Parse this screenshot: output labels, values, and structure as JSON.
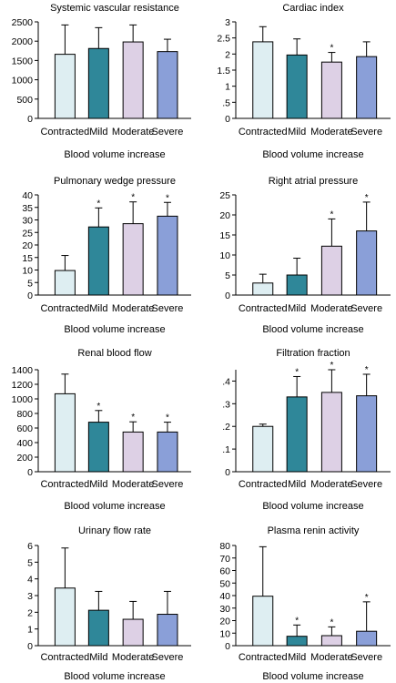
{
  "colors": {
    "contracted": "#deeef2",
    "mild": "#2f8799",
    "moderate": "#ddd0e5",
    "severe": "#8a9fd8",
    "outline": "#000000"
  },
  "chart_data": [
    {
      "type": "bar",
      "title": "Systemic vascular resistance",
      "xlabel": "Blood volume increase",
      "ylabel": "",
      "categories": [
        "Contracted",
        "Mild",
        "Moderate",
        "Severe"
      ],
      "values": [
        1660,
        1810,
        1980,
        1730
      ],
      "error_upper": [
        2420,
        2350,
        2420,
        2050
      ],
      "significant": [
        false,
        false,
        false,
        false
      ],
      "ylim": [
        0,
        2500
      ],
      "yticks": [
        0,
        500,
        1000,
        1500,
        2000,
        2500
      ],
      "yticklabels": [
        "0",
        "500",
        "1000",
        "1500",
        "2000",
        "2500"
      ]
    },
    {
      "type": "bar",
      "title": "Cardiac index",
      "xlabel": "Blood volume increase",
      "ylabel": "",
      "categories": [
        "Contracted",
        "Mild",
        "Moderate",
        "Severe"
      ],
      "values": [
        2.38,
        1.97,
        1.75,
        1.92
      ],
      "error_upper": [
        2.85,
        2.47,
        2.05,
        2.38
      ],
      "significant": [
        false,
        false,
        true,
        false
      ],
      "ylim": [
        0,
        3
      ],
      "yticks": [
        0,
        0.5,
        1,
        1.5,
        2,
        2.5,
        3
      ],
      "yticklabels": [
        "0",
        ".5",
        "1",
        "1.5",
        "2",
        "2.5",
        "3"
      ]
    },
    {
      "type": "bar",
      "title": "Pulmonary wedge pressure",
      "xlabel": "Blood volume increase",
      "ylabel": "",
      "categories": [
        "Contracted",
        "Mild",
        "Moderate",
        "Severe"
      ],
      "values": [
        9.8,
        27.2,
        28.5,
        31.5
      ],
      "error_upper": [
        15.8,
        34.8,
        37.2,
        37.0
      ],
      "significant": [
        false,
        true,
        true,
        true
      ],
      "ylim": [
        0,
        40
      ],
      "yticks": [
        0,
        5,
        10,
        15,
        20,
        25,
        30,
        35,
        40
      ],
      "yticklabels": [
        "0",
        "5",
        "10",
        "15",
        "20",
        "25",
        "30",
        "35",
        "40"
      ]
    },
    {
      "type": "bar",
      "title": "Right atrial pressure",
      "xlabel": "Blood volume increase",
      "ylabel": "",
      "categories": [
        "Contracted",
        "Mild",
        "Moderate",
        "Severe"
      ],
      "values": [
        3.0,
        5.0,
        12.2,
        16.0
      ],
      "error_upper": [
        5.2,
        9.2,
        19.0,
        23.2
      ],
      "significant": [
        false,
        false,
        true,
        true
      ],
      "ylim": [
        0,
        25
      ],
      "yticks": [
        0,
        5,
        10,
        15,
        20,
        25
      ],
      "yticklabels": [
        "0",
        "5",
        "10",
        "15",
        "20",
        "25"
      ]
    },
    {
      "type": "bar",
      "title": "Renal blood flow",
      "xlabel": "Blood volume increase",
      "ylabel": "",
      "categories": [
        "Contracted",
        "Mild",
        "Moderate",
        "Severe"
      ],
      "values": [
        1070,
        680,
        545,
        545
      ],
      "error_upper": [
        1340,
        840,
        685,
        680
      ],
      "significant": [
        false,
        true,
        true,
        true
      ],
      "ylim": [
        0,
        1400
      ],
      "yticks": [
        0,
        200,
        400,
        600,
        800,
        1000,
        1200,
        1400
      ],
      "yticklabels": [
        "0",
        "200",
        "400",
        "600",
        "800",
        "1000",
        "1200",
        "1400"
      ]
    },
    {
      "type": "bar",
      "title": "Filtration fraction",
      "xlabel": "Blood volume increase",
      "ylabel": "",
      "categories": [
        "Contracted",
        "Mild",
        "Moderate",
        "Severe"
      ],
      "values": [
        0.2,
        0.33,
        0.35,
        0.335
      ],
      "error_upper": [
        0.21,
        0.42,
        0.45,
        0.43
      ],
      "significant": [
        false,
        true,
        true,
        true
      ],
      "ylim": [
        0,
        0.45
      ],
      "yticks": [
        0,
        0.1,
        0.2,
        0.3,
        0.4
      ],
      "yticklabels": [
        "0",
        ".1",
        ".2",
        ".3",
        ".4"
      ]
    },
    {
      "type": "bar",
      "title": "Urinary flow rate",
      "xlabel": "Blood volume increase",
      "ylabel": "",
      "categories": [
        "Contracted",
        "Mild",
        "Moderate",
        "Severe"
      ],
      "values": [
        3.45,
        2.12,
        1.58,
        1.88
      ],
      "error_upper": [
        5.85,
        3.25,
        2.65,
        3.25
      ],
      "significant": [
        false,
        false,
        false,
        false
      ],
      "ylim": [
        0,
        6
      ],
      "yticks": [
        0,
        1,
        2,
        3,
        4,
        5,
        6
      ],
      "yticklabels": [
        "0",
        "1",
        "2",
        "3",
        "4",
        "5",
        "6"
      ]
    },
    {
      "type": "bar",
      "title": "Plasma renin activity",
      "xlabel": "Blood volume increase",
      "ylabel": "",
      "categories": [
        "Contracted",
        "Mild",
        "Moderate",
        "Severe"
      ],
      "values": [
        39.5,
        7.5,
        8.0,
        11.5
      ],
      "error_upper": [
        79.0,
        16.5,
        15.0,
        35.0
      ],
      "significant": [
        false,
        true,
        true,
        true
      ],
      "ylim": [
        0,
        80
      ],
      "yticks": [
        0,
        10,
        20,
        30,
        40,
        50,
        60,
        70,
        80
      ],
      "yticklabels": [
        "0",
        "10",
        "20",
        "30",
        "40",
        "50",
        "60",
        "70",
        "80"
      ]
    }
  ],
  "significance_marker": "*"
}
